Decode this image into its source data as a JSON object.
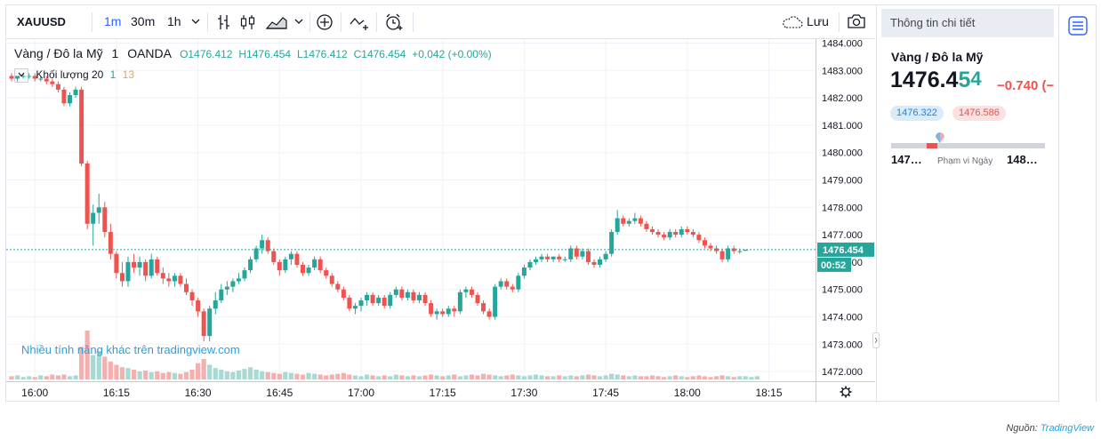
{
  "toolbar": {
    "symbol": "XAUUSD",
    "intervals": [
      "1m",
      "30m",
      "1h"
    ],
    "active_interval": "1m",
    "save_label": "Lưu",
    "icons": [
      "chevron-down-icon",
      "bar-type-icon",
      "candle-icon",
      "area-chart-icon",
      "chevron-down-icon",
      "add-indicator-icon",
      "compare-icon",
      "alert-icon",
      "cloud-icon",
      "camera-icon"
    ]
  },
  "legend": {
    "title": "Vàng / Đô la Mỹ",
    "interval": "1",
    "source": "OANDA",
    "open": "O1476.412",
    "high": "H1476.454",
    "low": "L1476.412",
    "close": "C1476.454",
    "change": "+0.042 (+0.00%)",
    "volume_label": "Khối lượng 20",
    "volume_a": "1",
    "volume_b": "13"
  },
  "promo": "Nhiều tính năng khác trên tradingview.com",
  "axis": {
    "price_ticks": [
      "1484.000",
      "1483.000",
      "1482.000",
      "1481.000",
      "1480.000",
      "1479.000",
      "1478.000",
      "1477.000",
      "1476.000",
      "1475.000",
      "1474.000",
      "1473.000",
      "1472.000"
    ],
    "price_label": "1476.454",
    "countdown": "00:52",
    "time_ticks": [
      "16:00",
      "16:15",
      "16:30",
      "16:45",
      "17:00",
      "17:15",
      "17:30",
      "17:45",
      "18:00",
      "18:15"
    ]
  },
  "chart_data": {
    "type": "candlestick",
    "x_labels": [
      "16:00",
      "16:15",
      "16:30",
      "16:45",
      "17:00",
      "17:15",
      "17:30",
      "17:45",
      "18:00",
      "18:15"
    ],
    "ylim": [
      1471.8,
      1484.1
    ],
    "last_price": 1476.454,
    "candles": [
      [
        1482.8,
        1482.9,
        1482.6,
        1482.7
      ],
      [
        1482.7,
        1482.8,
        1482.6,
        1482.8
      ],
      [
        1482.8,
        1482.9,
        1482.7,
        1482.8
      ],
      [
        1482.8,
        1482.9,
        1482.7,
        1482.8
      ],
      [
        1482.8,
        1482.9,
        1482.6,
        1482.7
      ],
      [
        1482.7,
        1482.8,
        1482.6,
        1482.7
      ],
      [
        1482.7,
        1482.8,
        1482.5,
        1482.6
      ],
      [
        1482.6,
        1482.7,
        1482.4,
        1482.5
      ],
      [
        1482.5,
        1482.6,
        1482.2,
        1482.3
      ],
      [
        1482.3,
        1482.4,
        1481.7,
        1481.8
      ],
      [
        1481.8,
        1482.2,
        1481.7,
        1482.1
      ],
      [
        1482.1,
        1482.4,
        1482.0,
        1482.3
      ],
      [
        1482.3,
        1482.4,
        1479.5,
        1479.6
      ],
      [
        1479.6,
        1479.7,
        1477.2,
        1477.4
      ],
      [
        1477.4,
        1478.1,
        1476.6,
        1477.8
      ],
      [
        1477.8,
        1478.5,
        1477.4,
        1478.0
      ],
      [
        1478.0,
        1478.2,
        1476.9,
        1477.1
      ],
      [
        1477.1,
        1477.4,
        1476.1,
        1476.3
      ],
      [
        1476.3,
        1476.4,
        1475.4,
        1475.6
      ],
      [
        1475.6,
        1476.0,
        1475.1,
        1475.3
      ],
      [
        1475.3,
        1476.2,
        1475.1,
        1476.0
      ],
      [
        1476.0,
        1476.3,
        1475.6,
        1475.8
      ],
      [
        1475.8,
        1476.2,
        1475.5,
        1476.0
      ],
      [
        1476.0,
        1476.1,
        1475.3,
        1475.5
      ],
      [
        1475.5,
        1476.3,
        1475.4,
        1476.1
      ],
      [
        1476.1,
        1476.2,
        1475.5,
        1475.6
      ],
      [
        1475.6,
        1475.8,
        1475.2,
        1475.4
      ],
      [
        1475.4,
        1475.6,
        1475.1,
        1475.3
      ],
      [
        1475.3,
        1475.6,
        1475.1,
        1475.5
      ],
      [
        1475.5,
        1475.6,
        1475.1,
        1475.2
      ],
      [
        1475.2,
        1475.4,
        1474.8,
        1474.9
      ],
      [
        1474.9,
        1475.0,
        1474.4,
        1474.6
      ],
      [
        1474.6,
        1474.7,
        1474.0,
        1474.2
      ],
      [
        1474.2,
        1474.3,
        1473.1,
        1473.3
      ],
      [
        1473.3,
        1474.4,
        1473.1,
        1474.3
      ],
      [
        1474.3,
        1474.9,
        1474.1,
        1474.6
      ],
      [
        1474.6,
        1475.2,
        1474.5,
        1475.0
      ],
      [
        1475.0,
        1475.3,
        1474.8,
        1475.1
      ],
      [
        1475.1,
        1475.4,
        1474.9,
        1475.3
      ],
      [
        1475.3,
        1475.6,
        1475.2,
        1475.4
      ],
      [
        1475.4,
        1475.8,
        1475.3,
        1475.7
      ],
      [
        1475.7,
        1476.2,
        1475.6,
        1476.1
      ],
      [
        1476.1,
        1476.6,
        1476.0,
        1476.5
      ],
      [
        1476.5,
        1477.0,
        1476.3,
        1476.8
      ],
      [
        1476.8,
        1476.9,
        1476.3,
        1476.4
      ],
      [
        1476.4,
        1476.5,
        1475.9,
        1476.0
      ],
      [
        1476.0,
        1476.1,
        1475.5,
        1475.7
      ],
      [
        1475.7,
        1476.2,
        1475.6,
        1476.1
      ],
      [
        1476.1,
        1476.4,
        1475.9,
        1476.3
      ],
      [
        1476.3,
        1476.4,
        1475.8,
        1475.9
      ],
      [
        1475.9,
        1476.0,
        1475.5,
        1475.6
      ],
      [
        1475.6,
        1475.9,
        1475.5,
        1475.8
      ],
      [
        1475.8,
        1476.2,
        1475.7,
        1476.1
      ],
      [
        1476.1,
        1476.2,
        1475.6,
        1475.7
      ],
      [
        1475.7,
        1475.8,
        1475.4,
        1475.5
      ],
      [
        1475.5,
        1475.6,
        1475.1,
        1475.2
      ],
      [
        1475.2,
        1475.3,
        1474.9,
        1475.0
      ],
      [
        1475.0,
        1475.1,
        1474.6,
        1474.7
      ],
      [
        1474.7,
        1474.8,
        1474.2,
        1474.3
      ],
      [
        1474.3,
        1474.5,
        1474.1,
        1474.4
      ],
      [
        1474.4,
        1474.7,
        1474.2,
        1474.6
      ],
      [
        1474.6,
        1474.9,
        1474.4,
        1474.8
      ],
      [
        1474.8,
        1474.9,
        1474.4,
        1474.5
      ],
      [
        1474.5,
        1474.8,
        1474.4,
        1474.7
      ],
      [
        1474.7,
        1474.8,
        1474.3,
        1474.4
      ],
      [
        1474.4,
        1474.9,
        1474.3,
        1474.8
      ],
      [
        1474.8,
        1475.1,
        1474.7,
        1475.0
      ],
      [
        1475.0,
        1475.1,
        1474.6,
        1474.7
      ],
      [
        1474.7,
        1475.0,
        1474.6,
        1474.9
      ],
      [
        1474.9,
        1475.0,
        1474.5,
        1474.6
      ],
      [
        1474.6,
        1474.9,
        1474.5,
        1474.8
      ],
      [
        1474.8,
        1474.9,
        1474.4,
        1474.5
      ],
      [
        1474.5,
        1474.6,
        1474.0,
        1474.1
      ],
      [
        1474.1,
        1474.3,
        1473.9,
        1474.2
      ],
      [
        1474.2,
        1474.3,
        1474.0,
        1474.1
      ],
      [
        1474.1,
        1474.4,
        1474.0,
        1474.3
      ],
      [
        1474.3,
        1474.4,
        1474.0,
        1474.2
      ],
      [
        1474.2,
        1475.0,
        1474.1,
        1474.9
      ],
      [
        1474.9,
        1475.1,
        1474.7,
        1475.0
      ],
      [
        1475.0,
        1475.1,
        1474.7,
        1474.8
      ],
      [
        1474.8,
        1474.9,
        1474.4,
        1474.5
      ],
      [
        1474.5,
        1474.6,
        1474.1,
        1474.2
      ],
      [
        1474.2,
        1474.3,
        1473.9,
        1474.0
      ],
      [
        1474.0,
        1475.2,
        1473.9,
        1475.1
      ],
      [
        1475.1,
        1475.4,
        1475.0,
        1475.3
      ],
      [
        1475.3,
        1475.4,
        1475.0,
        1475.1
      ],
      [
        1475.1,
        1475.2,
        1474.9,
        1475.0
      ],
      [
        1475.0,
        1475.6,
        1474.9,
        1475.5
      ],
      [
        1475.5,
        1475.9,
        1475.4,
        1475.8
      ],
      [
        1475.8,
        1476.1,
        1475.7,
        1476.0
      ],
      [
        1476.0,
        1476.2,
        1475.9,
        1476.1
      ],
      [
        1476.1,
        1476.3,
        1476.0,
        1476.2
      ],
      [
        1476.2,
        1476.3,
        1476.0,
        1476.1
      ],
      [
        1476.1,
        1476.2,
        1476.0,
        1476.2
      ],
      [
        1476.2,
        1476.3,
        1476.0,
        1476.1
      ],
      [
        1476.1,
        1476.2,
        1476.0,
        1476.1
      ],
      [
        1476.1,
        1476.6,
        1476.0,
        1476.5
      ],
      [
        1476.5,
        1476.6,
        1476.1,
        1476.2
      ],
      [
        1476.2,
        1476.5,
        1476.1,
        1476.4
      ],
      [
        1476.4,
        1476.5,
        1475.9,
        1476.0
      ],
      [
        1476.0,
        1476.1,
        1475.8,
        1475.9
      ],
      [
        1475.9,
        1476.2,
        1475.8,
        1476.1
      ],
      [
        1476.1,
        1476.4,
        1476.0,
        1476.3
      ],
      [
        1476.3,
        1477.2,
        1476.2,
        1477.1
      ],
      [
        1477.1,
        1477.9,
        1477.0,
        1477.6
      ],
      [
        1477.6,
        1477.7,
        1477.3,
        1477.4
      ],
      [
        1477.4,
        1477.6,
        1477.3,
        1477.5
      ],
      [
        1477.5,
        1477.8,
        1477.4,
        1477.6
      ],
      [
        1477.6,
        1477.7,
        1477.3,
        1477.4
      ],
      [
        1477.4,
        1477.5,
        1477.1,
        1477.2
      ],
      [
        1477.2,
        1477.3,
        1477.0,
        1477.1
      ],
      [
        1477.1,
        1477.2,
        1476.9,
        1477.0
      ],
      [
        1477.0,
        1477.1,
        1476.8,
        1476.9
      ],
      [
        1476.9,
        1477.2,
        1476.8,
        1477.1
      ],
      [
        1477.1,
        1477.2,
        1476.9,
        1477.0
      ],
      [
        1477.0,
        1477.3,
        1476.9,
        1477.2
      ],
      [
        1477.2,
        1477.3,
        1477.0,
        1477.1
      ],
      [
        1477.1,
        1477.2,
        1476.9,
        1477.0
      ],
      [
        1477.0,
        1477.1,
        1476.7,
        1476.8
      ],
      [
        1476.8,
        1476.9,
        1476.5,
        1476.6
      ],
      [
        1476.6,
        1476.7,
        1476.4,
        1476.5
      ],
      [
        1476.5,
        1476.6,
        1476.3,
        1476.4
      ],
      [
        1476.4,
        1476.5,
        1476.0,
        1476.1
      ],
      [
        1476.1,
        1476.6,
        1476.0,
        1476.5
      ],
      [
        1476.5,
        1476.6,
        1476.3,
        1476.4
      ],
      [
        1476.4,
        1476.5,
        1476.3,
        1476.4
      ],
      [
        1476.412,
        1476.454,
        1476.412,
        1476.454
      ]
    ],
    "volume_scale_max": 60,
    "volumes": [
      4,
      5,
      3,
      4,
      3,
      5,
      4,
      6,
      5,
      6,
      4,
      5,
      40,
      60,
      30,
      35,
      28,
      22,
      18,
      15,
      14,
      12,
      10,
      11,
      9,
      10,
      8,
      9,
      8,
      7,
      9,
      12,
      20,
      25,
      18,
      14,
      12,
      10,
      9,
      11,
      13,
      15,
      12,
      10,
      9,
      8,
      7,
      9,
      8,
      7,
      6,
      8,
      7,
      6,
      5,
      6,
      7,
      8,
      6,
      5,
      4,
      6,
      5,
      4,
      5,
      4,
      6,
      5,
      4,
      5,
      4,
      5,
      6,
      5,
      4,
      5,
      6,
      4,
      5,
      6,
      5,
      7,
      6,
      5,
      4,
      5,
      6,
      5,
      4,
      5,
      6,
      5,
      4,
      4,
      5,
      4,
      5,
      4,
      5,
      6,
      5,
      4,
      5,
      7,
      6,
      5,
      4,
      5,
      4,
      4,
      5,
      4,
      3,
      4,
      5,
      4,
      3,
      4,
      5,
      4,
      3,
      4,
      5,
      4,
      3,
      4,
      4,
      3,
      4
    ]
  },
  "sidebar": {
    "header": "Thông tin chi tiết",
    "name": "Vàng / Đô la Mỹ",
    "price_main": "1476.4",
    "price_last": "5",
    "price_sup": "4",
    "change": "−0.740 (−",
    "bid": "1476.322",
    "ask": "1476.586",
    "range_low": "147…",
    "range_label": "Phạm vi Ngày",
    "range_high": "148…"
  },
  "footer": {
    "source_label": "Nguồn:",
    "source_name": "TradingView"
  },
  "colors": {
    "up": "#26a69a",
    "down": "#ef5350",
    "accent": "#2962ff"
  }
}
